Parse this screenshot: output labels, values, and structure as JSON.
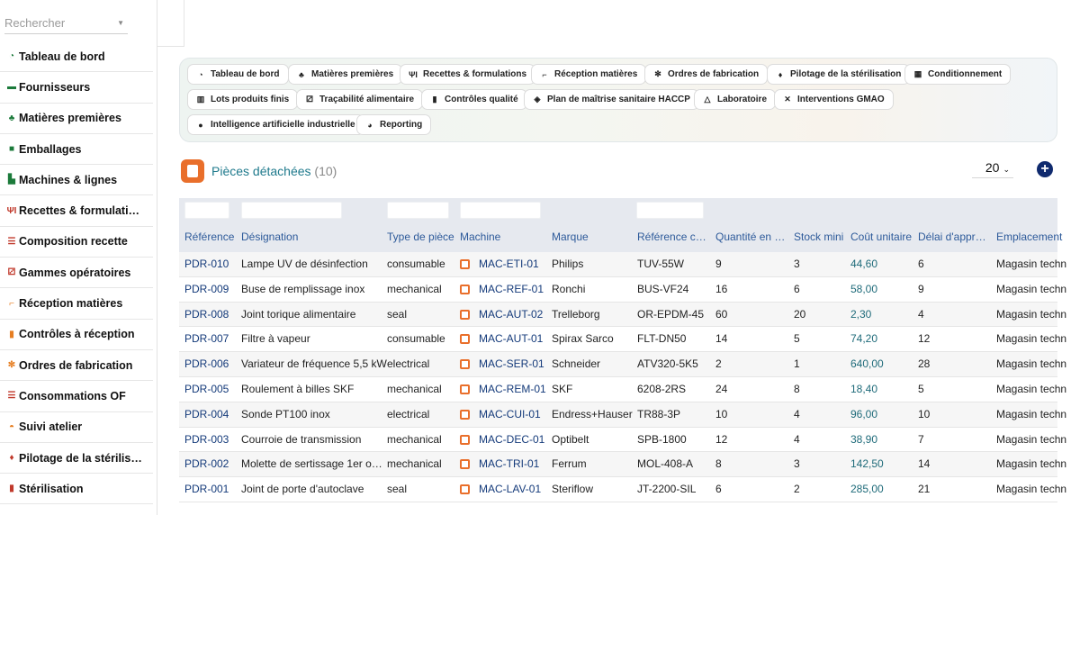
{
  "search": {
    "placeholder": "Rechercher"
  },
  "sidebar": {
    "items": [
      {
        "label": "Tableau de bord",
        "icon": "dashboard-icon"
      },
      {
        "label": "Fournisseurs",
        "icon": "truck-icon"
      },
      {
        "label": "Matières premières",
        "icon": "seedling-icon"
      },
      {
        "label": "Emballages",
        "icon": "box-icon"
      },
      {
        "label": "Machines & lignes",
        "icon": "industry-icon"
      },
      {
        "label": "Recettes & formulati…",
        "icon": "utensils-icon"
      },
      {
        "label": "Composition recette",
        "icon": "list-icon"
      },
      {
        "label": "Gammes opératoires",
        "icon": "sitemap-icon"
      },
      {
        "label": "Réception matières",
        "icon": "dolly-icon"
      },
      {
        "label": "Contrôles à réception",
        "icon": "clipboard-check-icon"
      },
      {
        "label": "Ordres de fabrication",
        "icon": "cogs-icon"
      },
      {
        "label": "Consommations OF",
        "icon": "list-icon"
      },
      {
        "label": "Suivi atelier",
        "icon": "hard-hat-icon"
      },
      {
        "label": "Pilotage de la stérilis…",
        "icon": "fire-icon"
      },
      {
        "label": "Stérilisation",
        "icon": "thermometer-icon"
      }
    ]
  },
  "nav": {
    "chips": [
      {
        "label": "Tableau de bord",
        "icon": "dashboard-icon"
      },
      {
        "label": "Matières premières",
        "icon": "seedling-icon"
      },
      {
        "label": "Recettes & formulations",
        "icon": "utensils-icon"
      },
      {
        "label": "Réception matières",
        "icon": "dolly-icon"
      },
      {
        "label": "Ordres de fabrication",
        "icon": "cogs-icon"
      },
      {
        "label": "Pilotage de la stérilisation",
        "icon": "fire-icon"
      },
      {
        "label": "Conditionnement",
        "icon": "boxes-icon"
      },
      {
        "label": "Lots produits finis",
        "icon": "barcode-icon"
      },
      {
        "label": "Traçabilité alimentaire",
        "icon": "sitemap-icon"
      },
      {
        "label": "Contrôles qualité",
        "icon": "clipboard-check-icon"
      },
      {
        "label": "Plan de maîtrise sanitaire HACCP",
        "icon": "shield-icon"
      },
      {
        "label": "Laboratoire",
        "icon": "flask-icon"
      },
      {
        "label": "Interventions GMAO",
        "icon": "tools-icon"
      },
      {
        "label": "Intelligence artificielle industrielle",
        "icon": "lightbulb-icon"
      },
      {
        "label": "Reporting",
        "icon": "chart-pie-icon"
      }
    ]
  },
  "header": {
    "title": "Pièces détachées",
    "count": "(10)",
    "page_size": "20",
    "add_icon": "plus-circle-icon"
  },
  "table": {
    "columns": [
      "Référence",
      "Désignation",
      "Type de pièce",
      "Machine",
      "Marque",
      "Référence c…",
      "Quantité en …",
      "Stock mini",
      "Coût unitaire",
      "Délai d'appr…",
      "Emplacement"
    ],
    "rows": [
      [
        "PDR-010",
        "Lampe UV de désinfection",
        "consumable",
        "MAC-ETI-01",
        "Philips",
        "TUV-55W",
        "9",
        "3",
        "44,60",
        "6",
        "Magasin techn"
      ],
      [
        "PDR-009",
        "Buse de remplissage inox",
        "mechanical",
        "MAC-REF-01",
        "Ronchi",
        "BUS-VF24",
        "16",
        "6",
        "58,00",
        "9",
        "Magasin techn"
      ],
      [
        "PDR-008",
        "Joint torique alimentaire",
        "seal",
        "MAC-AUT-02",
        "Trelleborg",
        "OR-EPDM-45",
        "60",
        "20",
        "2,30",
        "4",
        "Magasin techn"
      ],
      [
        "PDR-007",
        "Filtre à vapeur",
        "consumable",
        "MAC-AUT-01",
        "Spirax Sarco",
        "FLT-DN50",
        "14",
        "5",
        "74,20",
        "12",
        "Magasin techn"
      ],
      [
        "PDR-006",
        "Variateur de fréquence 5,5 kW",
        "electrical",
        "MAC-SER-01",
        "Schneider",
        "ATV320-5K5",
        "2",
        "1",
        "640,00",
        "28",
        "Magasin techn"
      ],
      [
        "PDR-005",
        "Roulement à billes SKF",
        "mechanical",
        "MAC-REM-01",
        "SKF",
        "6208-2RS",
        "24",
        "8",
        "18,40",
        "5",
        "Magasin techn"
      ],
      [
        "PDR-004",
        "Sonde PT100 inox",
        "electrical",
        "MAC-CUI-01",
        "Endress+Hauser",
        "TR88-3P",
        "10",
        "4",
        "96,00",
        "10",
        "Magasin techn"
      ],
      [
        "PDR-003",
        "Courroie de transmission",
        "mechanical",
        "MAC-DEC-01",
        "Optibelt",
        "SPB-1800",
        "12",
        "4",
        "38,90",
        "7",
        "Magasin techn"
      ],
      [
        "PDR-002",
        "Molette de sertissage 1er o…",
        "mechanical",
        "MAC-TRI-01",
        "Ferrum",
        "MOL-408-A",
        "8",
        "3",
        "142,50",
        "14",
        "Magasin techn"
      ],
      [
        "PDR-001",
        "Joint de porte d'autoclave",
        "seal",
        "MAC-LAV-01",
        "Steriflow",
        "JT-2200-SIL",
        "6",
        "2",
        "285,00",
        "21",
        "Magasin techn"
      ]
    ]
  }
}
